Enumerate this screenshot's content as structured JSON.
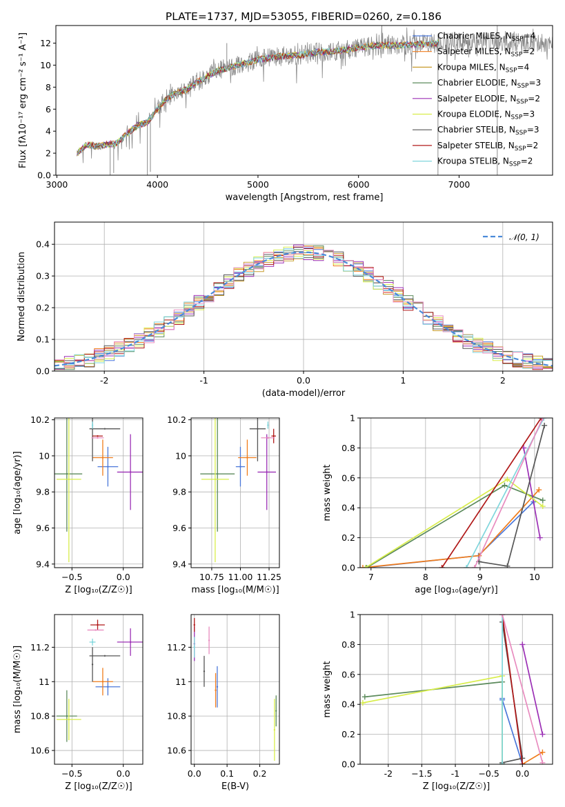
{
  "figure_title": "PLATE=1737, MJD=53055, FIBERID=0260, z=0.186",
  "colors": {
    "Chabrier MILES": "#4a77d9",
    "Salpeter MILES": "#f07c1b",
    "Kroupa MILES": "#c79b2b",
    "Chabrier ELODIE": "#5b8a5b",
    "Salpeter ELODIE": "#9b2fb5",
    "Kroupa ELODIE": "#d8ed4a",
    "Chabrier STELIB": "#555555",
    "Salpeter STELIB": "#b01818",
    "Kroupa STELIB": "#7fd6dc",
    "pink": "#e88bbf",
    "spectrum": "#8a8a8a",
    "normal": "#4a8ad9"
  },
  "chart_data": [
    {
      "id": "spectrum",
      "type": "line",
      "xlabel": "wavelength [Angstrom, rest frame]",
      "ylabel": "Flux [fλ10⁻¹⁷ erg cm⁻² s⁻¹ A⁻¹]",
      "xlim": [
        2990,
        7930
      ],
      "ylim": [
        0,
        13.6
      ],
      "xticks": [
        3000,
        4000,
        5000,
        6000,
        7000
      ],
      "yticks": [
        0,
        2,
        4,
        6,
        8,
        10,
        12
      ],
      "grid": false,
      "legend_position": "right",
      "legend": [
        {
          "name": "Chabrier MILES",
          "nssp": "4"
        },
        {
          "name": "Salpeter MILES",
          "nssp": "2"
        },
        {
          "name": "Kroupa MILES",
          "nssp": "4"
        },
        {
          "name": "Chabrier ELODIE",
          "nssp": "3"
        },
        {
          "name": "Salpeter ELODIE",
          "nssp": "2"
        },
        {
          "name": "Kroupa ELODIE",
          "nssp": "3"
        },
        {
          "name": "Chabrier STELIB",
          "nssp": "3"
        },
        {
          "name": "Salpeter STELIB",
          "nssp": "2"
        },
        {
          "name": "Kroupa STELIB",
          "nssp": "2"
        }
      ],
      "nssp_prefix": "N",
      "nssp_sub": "SSP",
      "continuum": {
        "x": [
          3200,
          3300,
          3400,
          3500,
          3600,
          3700,
          3800,
          3900,
          4000,
          4100,
          4200,
          4300,
          4400,
          4600,
          4800,
          5000,
          5200,
          5400,
          5600,
          5800,
          6000,
          6200,
          6400,
          6600,
          6800,
          7000,
          7200,
          7400,
          7600,
          7900
        ],
        "y": [
          2.0,
          2.8,
          2.6,
          2.8,
          2.9,
          3.8,
          4.5,
          4.8,
          6.0,
          7.0,
          7.5,
          7.8,
          8.5,
          9.5,
          10.0,
          10.5,
          10.8,
          10.9,
          11.2,
          11.3,
          11.6,
          11.8,
          11.8,
          11.9,
          12.0,
          12.1,
          12.1,
          12.1,
          12.0,
          12.0
        ]
      },
      "spikes": [
        {
          "x": 3530,
          "y": 0.0
        },
        {
          "x": 3565,
          "y": 0.2
        },
        {
          "x": 3900,
          "y": 0.0
        },
        {
          "x": 3930,
          "y": 0.3
        },
        {
          "x": 6790,
          "y": 0.0
        },
        {
          "x": 7380,
          "y": 0.0
        },
        {
          "x": 4130,
          "y": 8.3
        },
        {
          "x": 4690,
          "y": 12.0
        }
      ]
    },
    {
      "id": "residuals",
      "type": "histogram",
      "xlabel": "(data-model)/error",
      "ylabel": "Normed distribution",
      "xlim": [
        -2.5,
        2.5
      ],
      "ylim": [
        0,
        0.47
      ],
      "xticks": [
        -2,
        -1,
        0,
        1,
        2
      ],
      "yticks": [
        0.0,
        0.1,
        0.2,
        0.3,
        0.4
      ],
      "grid": true,
      "legend_position": "top-right",
      "normal_label": "𝒩(0, 1)",
      "bin_width": 0.1
    },
    {
      "id": "age_vs_Z",
      "type": "scatter",
      "xlabel": "Z [log₁₀(Z/Z☉)]",
      "ylabel": "age  [log₁₀(age/yr)]",
      "xlim": [
        -0.67,
        0.19
      ],
      "ylim": [
        9.38,
        10.21
      ],
      "xticks": [
        -0.5,
        0.0
      ],
      "yticks": [
        9.4,
        9.6,
        9.8,
        10.0,
        10.2
      ],
      "grid": true,
      "points": [
        {
          "model": "Chabrier MILES",
          "x": -0.15,
          "y": 9.94,
          "xerr": 0.1,
          "yerr": 0.11
        },
        {
          "model": "Salpeter MILES",
          "x": -0.2,
          "y": 9.99,
          "xerr": 0.1,
          "yerr": 0.1
        },
        {
          "model": "Chabrier ELODIE",
          "x": -0.55,
          "y": 9.9,
          "xerr": 0.15,
          "yerr": 0.32
        },
        {
          "model": "Salpeter ELODIE",
          "x": 0.07,
          "y": 9.91,
          "xerr": 0.13,
          "yerr": 0.21
        },
        {
          "model": "Kroupa ELODIE",
          "x": -0.53,
          "y": 9.87,
          "xerr": 0.12,
          "yerr": 0.46
        },
        {
          "model": "Chabrier STELIB",
          "x": -0.3,
          "y": 10.15,
          "xerr": 0.0,
          "yerr": 0.18
        },
        {
          "model": "Chabrier STELIB",
          "x": -0.18,
          "y": 10.15,
          "xerr": 0.15,
          "yerr": 0.0
        },
        {
          "model": "Salpeter STELIB",
          "x": -0.25,
          "y": 10.11,
          "xerr": 0.05,
          "yerr": 0.0
        },
        {
          "model": "Kroupa STELIB",
          "x": -0.3,
          "y": 10.17,
          "xerr": 0.0,
          "yerr": 0.02
        },
        {
          "model": "pink",
          "x": -0.25,
          "y": 10.1,
          "xerr": 0.06,
          "yerr": 0.0
        }
      ]
    },
    {
      "id": "age_vs_mass",
      "type": "scatter",
      "xlabel": "mass [log₁₀(M/M☉)]",
      "ylabel": "",
      "xlim": [
        10.57,
        11.34
      ],
      "ylim": [
        9.38,
        10.21
      ],
      "xticks": [
        10.75,
        11.0,
        11.25
      ],
      "yticks": [
        9.4,
        9.6,
        9.8,
        10.0,
        10.2
      ],
      "grid": true,
      "tick_format": "2dp",
      "points": [
        {
          "model": "Chabrier MILES",
          "x": 11.0,
          "y": 9.94,
          "xerr": 0.04,
          "yerr": 0.11
        },
        {
          "model": "Salpeter MILES",
          "x": 11.06,
          "y": 9.99,
          "xerr": 0.08,
          "yerr": 0.1
        },
        {
          "model": "Chabrier ELODIE",
          "x": 10.8,
          "y": 9.9,
          "xerr": 0.15,
          "yerr": 0.32
        },
        {
          "model": "Salpeter ELODIE",
          "x": 11.23,
          "y": 9.91,
          "xerr": 0.08,
          "yerr": 0.21
        },
        {
          "model": "Kroupa ELODIE",
          "x": 10.78,
          "y": 9.87,
          "xerr": 0.12,
          "yerr": 0.46
        },
        {
          "model": "Chabrier STELIB",
          "x": 11.15,
          "y": 10.15,
          "xerr": 0.07,
          "yerr": 0.18
        },
        {
          "model": "Salpeter STELIB",
          "x": 11.29,
          "y": 10.11,
          "xerr": 0.02,
          "yerr": 0.04
        },
        {
          "model": "Kroupa STELIB",
          "x": 11.24,
          "y": 10.17,
          "xerr": 0.0,
          "yerr": 0.02
        },
        {
          "model": "pink",
          "x": 11.24,
          "y": 10.1,
          "xerr": 0.06,
          "yerr": 0.0
        }
      ]
    },
    {
      "id": "weight_vs_age",
      "type": "line",
      "xlabel": "age  [log₁₀(age/yr)]",
      "ylabel": "mass weight",
      "xlim": [
        6.8,
        10.33
      ],
      "ylim": [
        0,
        1
      ],
      "xticks": [
        7,
        8,
        9,
        10
      ],
      "yticks": [
        0.0,
        0.2,
        0.4,
        0.6,
        0.8,
        1.0
      ],
      "grid": true,
      "series": [
        {
          "model": "Chabrier MILES",
          "x": [
            6.9,
            8.97,
            9.98
          ],
          "y": [
            0.0,
            0.08,
            0.44
          ]
        },
        {
          "model": "Salpeter MILES",
          "x": [
            6.85,
            8.98,
            10.08
          ],
          "y": [
            0.0,
            0.08,
            0.52
          ]
        },
        {
          "model": "Chabrier ELODIE",
          "x": [
            6.92,
            9.45,
            10.15
          ],
          "y": [
            0.0,
            0.55,
            0.45
          ]
        },
        {
          "model": "Salpeter ELODIE",
          "x": [
            9.8,
            10.1
          ],
          "y": [
            0.8,
            0.2
          ]
        },
        {
          "model": "Kroupa ELODIE",
          "x": [
            6.9,
            9.5,
            10.15
          ],
          "y": [
            0.0,
            0.59,
            0.41
          ]
        },
        {
          "model": "Chabrier STELIB",
          "x": [
            8.98,
            9.5,
            10.18
          ],
          "y": [
            0.04,
            0.01,
            0.95
          ]
        },
        {
          "model": "Salpeter STELIB",
          "x": [
            8.3,
            10.12
          ],
          "y": [
            0.0,
            1.0
          ]
        },
        {
          "model": "Kroupa STELIB",
          "x": [
            8.75,
            10.17
          ],
          "y": [
            0.0,
            1.0
          ]
        },
        {
          "model": "pink",
          "x": [
            8.9,
            10.15
          ],
          "y": [
            0.0,
            1.0
          ]
        }
      ]
    },
    {
      "id": "mass_vs_Z",
      "type": "scatter",
      "xlabel": "Z [log₁₀(Z/Z☉)]",
      "ylabel": "mass [log₁₀(M/M☉)]",
      "xlim": [
        -0.67,
        0.19
      ],
      "ylim": [
        10.52,
        11.39
      ],
      "xticks": [
        -0.5,
        0.0
      ],
      "yticks": [
        10.6,
        10.8,
        11.0,
        11.2
      ],
      "grid": true,
      "points": [
        {
          "model": "Chabrier MILES",
          "x": -0.15,
          "y": 10.97,
          "xerr": 0.12,
          "yerr": 0.05
        },
        {
          "model": "Salpeter MILES",
          "x": -0.2,
          "y": 11.0,
          "xerr": 0.1,
          "yerr": 0.08
        },
        {
          "model": "Chabrier ELODIE",
          "x": -0.55,
          "y": 10.8,
          "xerr": 0.1,
          "yerr": 0.15
        },
        {
          "model": "Salpeter ELODIE",
          "x": 0.07,
          "y": 11.23,
          "xerr": 0.13,
          "yerr": 0.08
        },
        {
          "model": "Kroupa ELODIE",
          "x": -0.53,
          "y": 10.78,
          "xerr": 0.12,
          "yerr": 0.12
        },
        {
          "model": "Chabrier STELIB",
          "x": -0.18,
          "y": 11.15,
          "xerr": 0.15,
          "yerr": 0.0
        },
        {
          "model": "Chabrier STELIB",
          "x": -0.3,
          "y": 11.1,
          "xerr": 0.0,
          "yerr": 0.1
        },
        {
          "model": "Salpeter STELIB",
          "x": -0.25,
          "y": 11.33,
          "xerr": 0.07,
          "yerr": 0.03
        },
        {
          "model": "Kroupa STELIB",
          "x": -0.3,
          "y": 11.23,
          "xerr": 0.03,
          "yerr": 0.02
        },
        {
          "model": "pink",
          "x": -0.27,
          "y": 11.3,
          "xerr": 0.08,
          "yerr": 0.0
        }
      ]
    },
    {
      "id": "mass_vs_EBV",
      "type": "scatter",
      "xlabel": "E(B-V)",
      "ylabel": "",
      "xlim": [
        -0.01,
        0.26
      ],
      "ylim": [
        10.52,
        11.39
      ],
      "xticks": [
        0.0,
        0.1,
        0.2
      ],
      "yticks": [
        10.6,
        10.8,
        11.0,
        11.2
      ],
      "grid": true,
      "points": [
        {
          "model": "Chabrier MILES",
          "x": 0.07,
          "y": 10.97,
          "xerr": 0.0,
          "yerr": 0.12
        },
        {
          "model": "Salpeter MILES",
          "x": 0.065,
          "y": 10.95,
          "xerr": 0.0,
          "yerr": 0.1
        },
        {
          "model": "Chabrier ELODIE",
          "x": 0.25,
          "y": 10.83,
          "xerr": 0.0,
          "yerr": 0.09
        },
        {
          "model": "Salpeter ELODIE",
          "x": 0.0,
          "y": 11.22,
          "xerr": 0.0,
          "yerr": 0.1
        },
        {
          "model": "Kroupa ELODIE",
          "x": 0.245,
          "y": 10.72,
          "xerr": 0.0,
          "yerr": 0.18
        },
        {
          "model": "Chabrier STELIB",
          "x": 0.03,
          "y": 11.06,
          "xerr": 0.0,
          "yerr": 0.09
        },
        {
          "model": "Salpeter STELIB",
          "x": 0.0,
          "y": 11.33,
          "xerr": 0.0,
          "yerr": 0.04
        },
        {
          "model": "Kroupa STELIB",
          "x": 0.0,
          "y": 11.2,
          "xerr": 0.0,
          "yerr": 0.06
        },
        {
          "model": "pink",
          "x": 0.045,
          "y": 11.24,
          "xerr": 0.0,
          "yerr": 0.08
        }
      ]
    },
    {
      "id": "weight_vs_Z",
      "type": "line",
      "xlabel": "Z [log₁₀(Z/Z☉)]",
      "ylabel": "mass weight",
      "xlim": [
        -2.42,
        0.45
      ],
      "ylim": [
        0,
        1
      ],
      "xticks": [
        -2.0,
        -1.5,
        -1.0,
        -0.5,
        0.0
      ],
      "yticks": [
        0.0,
        0.2,
        0.4,
        0.6,
        0.8,
        1.0
      ],
      "grid": true,
      "series": [
        {
          "model": "Chabrier MILES",
          "x": [
            -0.3,
            -0.3,
            0.0
          ],
          "y": [
            0.44,
            0.43,
            0.0
          ]
        },
        {
          "model": "Salpeter MILES",
          "x": [
            0.0,
            0.3
          ],
          "y": [
            0.0,
            0.08
          ]
        },
        {
          "model": "Chabrier ELODIE",
          "x": [
            -2.35,
            -0.3,
            -0.3
          ],
          "y": [
            0.45,
            0.55,
            0.0
          ]
        },
        {
          "model": "Salpeter ELODIE",
          "x": [
            0.0,
            0.3
          ],
          "y": [
            0.8,
            0.2
          ]
        },
        {
          "model": "Kroupa ELODIE",
          "x": [
            -2.38,
            -0.3,
            -0.3
          ],
          "y": [
            0.41,
            0.59,
            0.0
          ]
        },
        {
          "model": "Chabrier STELIB",
          "x": [
            -0.3,
            0.0,
            -0.3,
            -0.3
          ],
          "y": [
            0.95,
            0.04,
            0.01,
            0.0
          ]
        },
        {
          "model": "Salpeter STELIB",
          "x": [
            -0.3,
            0.0
          ],
          "y": [
            1.0,
            0.0
          ]
        },
        {
          "model": "Kroupa STELIB",
          "x": [
            -0.3,
            -0.3
          ],
          "y": [
            1.0,
            0.0
          ]
        },
        {
          "model": "pink",
          "x": [
            -0.3,
            0.3
          ],
          "y": [
            1.0,
            0.01
          ]
        }
      ]
    }
  ]
}
